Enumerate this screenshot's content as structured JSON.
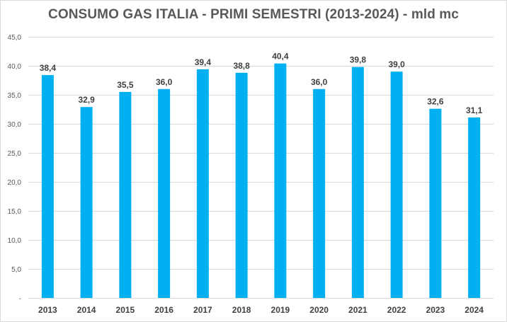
{
  "chart_data": {
    "type": "bar",
    "title": "CONSUMO GAS ITALIA - PRIMI SEMESTRI (2013-2024) - mld mc",
    "categories": [
      "2013",
      "2014",
      "2015",
      "2016",
      "2017",
      "2018",
      "2019",
      "2020",
      "2021",
      "2022",
      "2023",
      "2024"
    ],
    "series": [
      {
        "values": [
          38.4,
          32.9,
          35.5,
          36.0,
          39.4,
          38.8,
          40.4,
          36.0,
          39.8,
          39.0,
          32.6,
          31.1
        ]
      }
    ],
    "data_labels": [
      "38,4",
      "32,9",
      "35,5",
      "36,0",
      "39,4",
      "38,8",
      "40,4",
      "36,0",
      "39,8",
      "39,0",
      "32,6",
      "31,1"
    ],
    "ylim": [
      0,
      45
    ],
    "yticks": [
      0,
      5,
      10,
      15,
      20,
      25,
      30,
      35,
      40,
      45
    ],
    "ytick_labels": [
      "-",
      "5,0",
      "10,0",
      "15,0",
      "20,0",
      "25,0",
      "30,0",
      "35,0",
      "40,0",
      "45,0"
    ],
    "xlabel": "",
    "ylabel": "",
    "grid": true,
    "bar_color": "#00b0f0"
  }
}
